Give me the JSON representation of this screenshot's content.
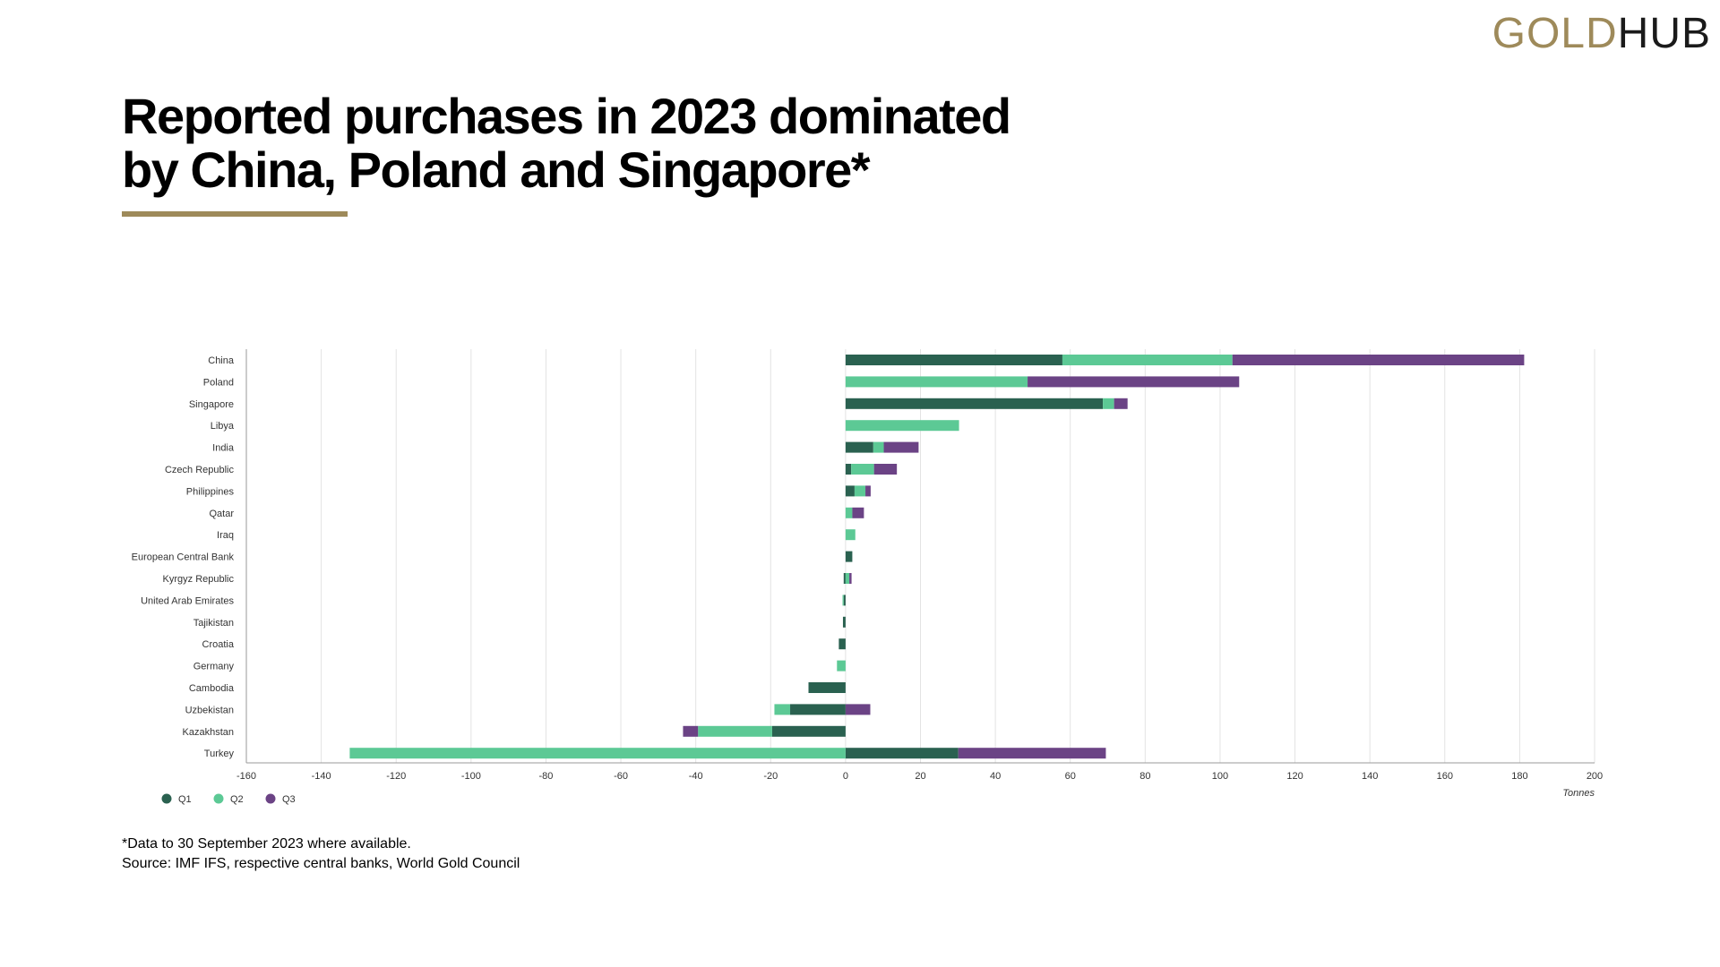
{
  "brand": {
    "gold": "GOLD",
    "hub": "HUB",
    "gold_color": "#9e8a5a"
  },
  "title": {
    "line1": "Reported purchases in 2023 dominated",
    "line2": "by China, Poland and Singapore*"
  },
  "chart_data": {
    "type": "bar",
    "orientation": "horizontal",
    "stacked": true,
    "xlabel": "Tonnes",
    "xlim": [
      -160,
      200
    ],
    "xticks": [
      -160,
      -140,
      -120,
      -100,
      -80,
      -60,
      -40,
      -20,
      0,
      20,
      40,
      60,
      80,
      100,
      120,
      140,
      160,
      180,
      200
    ],
    "grid": true,
    "legend_position": "bottom-left",
    "categories": [
      "China",
      "Poland",
      "Singapore",
      "Libya",
      "India",
      "Czech Republic",
      "Philippines",
      "Qatar",
      "Iraq",
      "European Central Bank",
      "Kyrgyz Republic",
      "United Arab Emirates",
      "Tajikistan",
      "Croatia",
      "Germany",
      "Cambodia",
      "Uzbekistan",
      "Kazakhstan",
      "Turkey"
    ],
    "series": [
      {
        "name": "Q1",
        "color": "#2a6150",
        "values": [
          57.9,
          0,
          68.7,
          0,
          7.4,
          1.5,
          2.4,
          0,
          0,
          1.8,
          -0.5,
          -0.5,
          -0.7,
          -1.8,
          0,
          -9.9,
          -14.8,
          -19.6,
          30.1
        ]
      },
      {
        "name": "Q2",
        "color": "#5cc995",
        "values": [
          45.4,
          48.6,
          3.0,
          30.3,
          2.8,
          6.1,
          2.9,
          1.8,
          2.6,
          0,
          1.0,
          -0.3,
          0,
          0,
          -2.3,
          0,
          -4.2,
          -19.8,
          -132.4
        ]
      },
      {
        "name": "Q3",
        "color": "#6b4385",
        "values": [
          77.9,
          56.5,
          3.6,
          0,
          9.3,
          6.1,
          1.4,
          3.1,
          0,
          0,
          0.6,
          0,
          0,
          0,
          0,
          0,
          6.6,
          -4.0,
          39.4
        ]
      }
    ]
  },
  "footnote": {
    "line1": "*Data to 30 September 2023 where available.",
    "line2": "Source: IMF IFS, respective central banks, World Gold Council"
  }
}
